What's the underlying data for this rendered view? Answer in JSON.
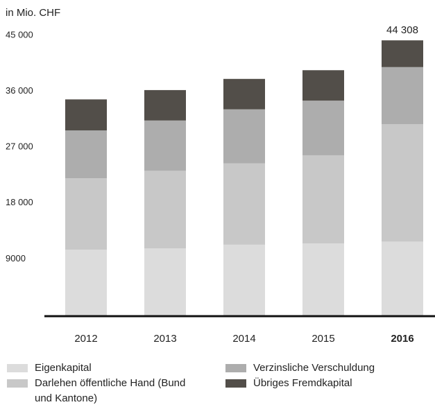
{
  "chart_data": {
    "type": "stacked_bar",
    "unit_label": "in Mio. CHF",
    "categories": [
      "2012",
      "2013",
      "2014",
      "2015",
      "2016"
    ],
    "series": [
      {
        "name": "Eigenkapital",
        "color": "#dcdcdc",
        "values": [
          10600,
          10800,
          11400,
          11600,
          11900
        ]
      },
      {
        "name": "Darlehen öffentliche Hand (Bund und Kantone)",
        "color": "#c8c8c8",
        "values": [
          11500,
          12500,
          13100,
          14200,
          18900
        ]
      },
      {
        "name": "Verzinsliche Verschuldung",
        "color": "#adadad",
        "values": [
          7700,
          8100,
          8700,
          8800,
          9200
        ]
      },
      {
        "name": "Übriges Fremdkapital",
        "color": "#524e49",
        "values": [
          5000,
          4900,
          4900,
          4900,
          4308
        ]
      }
    ],
    "total_label": {
      "category": 4,
      "value": 44308,
      "label": "44 308"
    },
    "ylim": [
      0,
      45000
    ],
    "yticks": [
      9000,
      {
        "value": 18000,
        "label": "18 000"
      },
      {
        "value": 27000,
        "label": "27 000"
      },
      {
        "value": 36000,
        "label": "36 000"
      },
      {
        "value": 45000,
        "label": "45 000"
      }
    ]
  }
}
